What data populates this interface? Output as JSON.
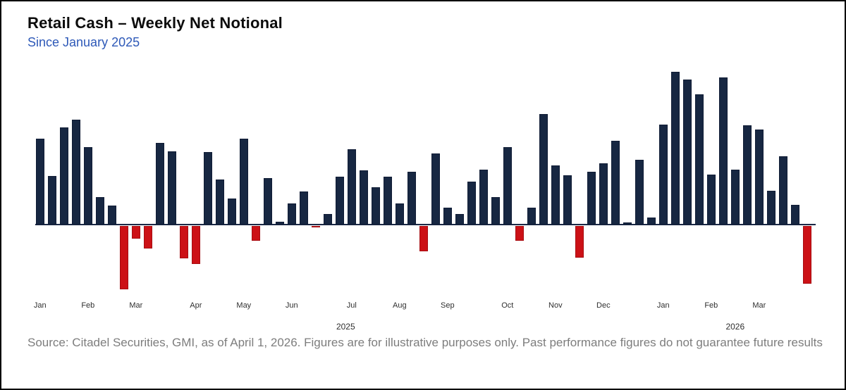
{
  "header": {
    "title": "Retail Cash – Weekly Net Notional",
    "subtitle": "Since January 2025"
  },
  "footer": {
    "source": "Source: Citadel Securities, GMI, as of April 1, 2026. Figures are for illustrative purposes only. Past performance figures do not guarantee future results"
  },
  "colors": {
    "positive_bar": "#172742",
    "positive_bar_border": "#101c35",
    "negative_bar": "#cc1116",
    "negative_bar_border": "#a70d12",
    "axis_line": "#1b2946",
    "subtitle_text": "#2e59b8",
    "source_text": "#7d7d7d",
    "tick_text": "#2f2f2f"
  },
  "chart_data": {
    "type": "bar",
    "title": "Retail Cash – Weekly Net Notional",
    "subtitle": "Since January 2025",
    "xlabel": "",
    "ylabel": "",
    "x_unit": "week",
    "value_unit": "relative (no y-axis shown; values are signed bar heights in px)",
    "ylim": [
      -95,
      220
    ],
    "grid": false,
    "legend": "none",
    "categories": [
      "Jan 2025 W1",
      "Jan 2025 W2",
      "Jan 2025 W3",
      "Jan 2025 W4",
      "Feb 2025 W1",
      "Feb 2025 W2",
      "Feb 2025 W3",
      "Feb 2025 W4",
      "Mar 2025 W1",
      "Mar 2025 W2",
      "Mar 2025 W3",
      "Mar 2025 W4",
      "Mar 2025 W5",
      "Apr 2025 W1",
      "Apr 2025 W2",
      "Apr 2025 W3",
      "Apr 2025 W4",
      "May 2025 W1",
      "May 2025 W2",
      "May 2025 W3",
      "May 2025 W4",
      "Jun 2025 W1",
      "Jun 2025 W2",
      "Jun 2025 W3",
      "Jun 2025 W4",
      "Jun 2025 W5",
      "Jul 2025 W1",
      "Jul 2025 W2",
      "Jul 2025 W3",
      "Jul 2025 W4",
      "Aug 2025 W1",
      "Aug 2025 W2",
      "Aug 2025 W3",
      "Aug 2025 W4",
      "Sep 2025 W1",
      "Sep 2025 W2",
      "Sep 2025 W3",
      "Sep 2025 W4",
      "Sep 2025 W5",
      "Oct 2025 W1",
      "Oct 2025 W2",
      "Oct 2025 W3",
      "Oct 2025 W4",
      "Nov 2025 W1",
      "Nov 2025 W2",
      "Nov 2025 W3",
      "Nov 2025 W4",
      "Dec 2025 W1",
      "Dec 2025 W2",
      "Dec 2025 W3",
      "Dec 2025 W4",
      "Dec 2025 W5",
      "Jan 2026 W1",
      "Jan 2026 W2",
      "Jan 2026 W3",
      "Jan 2026 W4",
      "Feb 2026 W1",
      "Feb 2026 W2",
      "Feb 2026 W3",
      "Feb 2026 W4",
      "Mar 2026 W1",
      "Mar 2026 W2",
      "Mar 2026 W3",
      "Mar 2026 W4",
      "Mar 2026 W5"
    ],
    "values": [
      122,
      69,
      138,
      149,
      110,
      39,
      27,
      -90,
      -18,
      -32,
      116,
      104,
      -46,
      -54,
      103,
      64,
      37,
      122,
      -21,
      66,
      4,
      30,
      47,
      -2,
      15,
      68,
      107,
      77,
      53,
      68,
      30,
      75,
      -36,
      101,
      24,
      15,
      61,
      78,
      39,
      110,
      -21,
      24,
      157,
      84,
      70,
      -45,
      75,
      87,
      119,
      3,
      92,
      10,
      142,
      217,
      206,
      185,
      71,
      209,
      78,
      141,
      135,
      48,
      97,
      28,
      -82
    ],
    "month_ticks": [
      {
        "label": "Jan",
        "bar_index": 0
      },
      {
        "label": "Feb",
        "bar_index": 4
      },
      {
        "label": "Mar",
        "bar_index": 8
      },
      {
        "label": "Apr",
        "bar_index": 13
      },
      {
        "label": "May",
        "bar_index": 17
      },
      {
        "label": "Jun",
        "bar_index": 21
      },
      {
        "label": "Jul",
        "bar_index": 26
      },
      {
        "label": "Aug",
        "bar_index": 30
      },
      {
        "label": "Sep",
        "bar_index": 34
      },
      {
        "label": "Oct",
        "bar_index": 39
      },
      {
        "label": "Nov",
        "bar_index": 43
      },
      {
        "label": "Dec",
        "bar_index": 47
      },
      {
        "label": "Jan",
        "bar_index": 52
      },
      {
        "label": "Feb",
        "bar_index": 56
      },
      {
        "label": "Mar",
        "bar_index": 60
      }
    ],
    "year_ticks": [
      {
        "label": "2025",
        "bar_center_index": 25.5
      },
      {
        "label": "2026",
        "bar_center_index": 58.0
      }
    ]
  }
}
